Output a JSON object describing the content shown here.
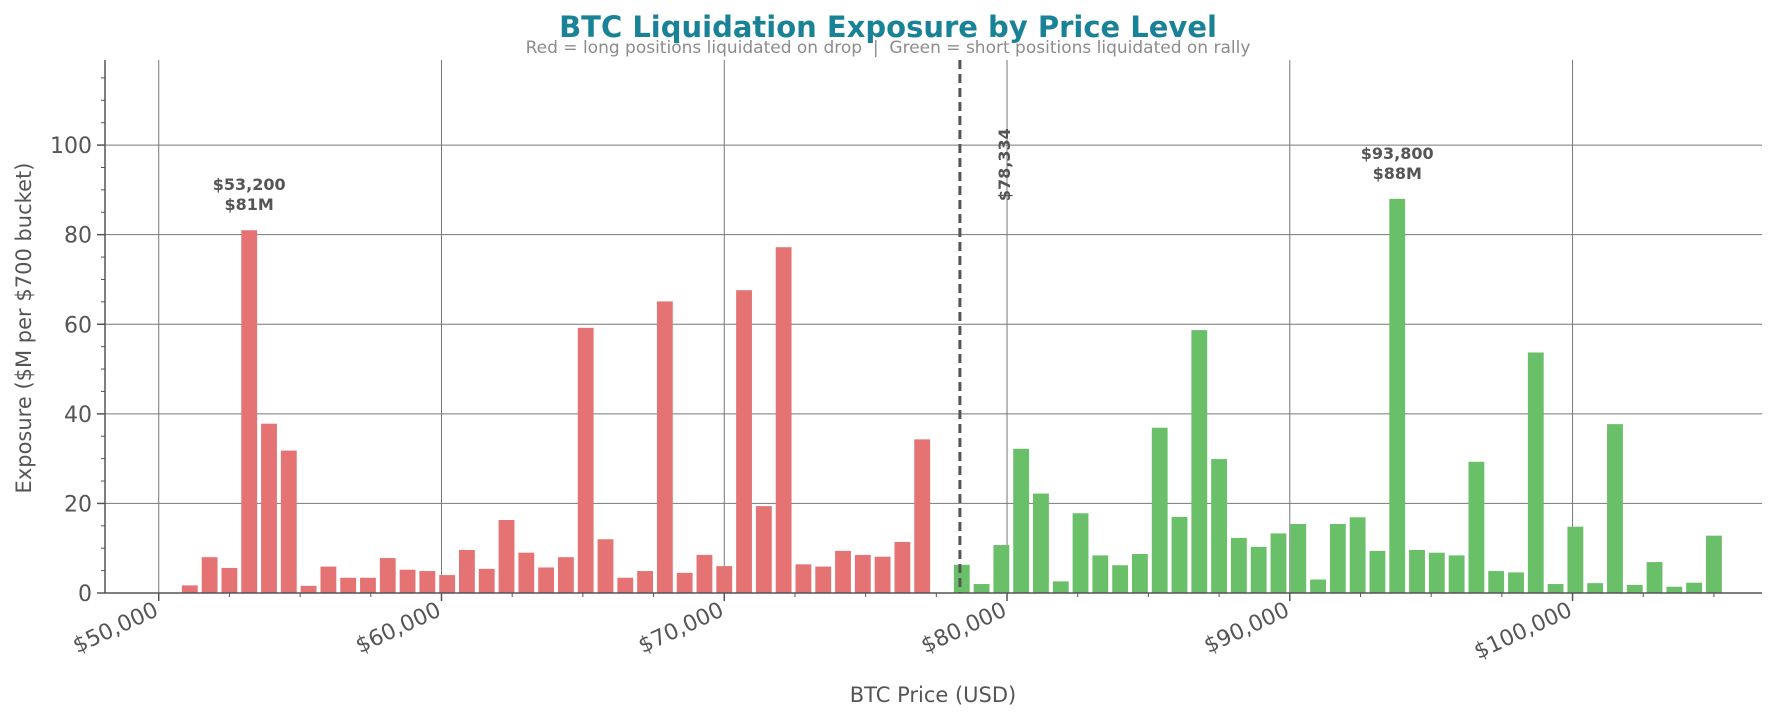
{
  "chart_data": {
    "type": "bar",
    "title": "BTC Liquidation Exposure by Price Level",
    "subtitle": "Red = long positions liquidated on drop  |  Green = short positions liquidated on rally",
    "xlabel": "BTC Price (USD)",
    "ylabel": "Exposure ($M per $700 bucket)",
    "xlim": [
      48100,
      106700
    ],
    "ylim": [
      0,
      119
    ],
    "x_ticks": [
      50000,
      60000,
      70000,
      80000,
      90000,
      100000
    ],
    "x_tick_labels": [
      "$50,000",
      "$60,000",
      "$70,000",
      "$80,000",
      "$90,000",
      "$100,000"
    ],
    "y_ticks": [
      0,
      20,
      40,
      60,
      80,
      100
    ],
    "y_tick_labels": [
      "0",
      "20",
      "40",
      "60",
      "80",
      "100"
    ],
    "grid": true,
    "bucket_width": 700,
    "current_price": 78334,
    "current_price_label": "$78,334",
    "colors": {
      "long": "#e57373",
      "short": "#6abf69",
      "title": "#1a8296",
      "annotation": "#555555"
    },
    "series": [
      {
        "side": "long",
        "color": "#e57373",
        "x": [
          51100,
          51800,
          52500,
          53200,
          53900,
          54600,
          55300,
          56000,
          56700,
          57400,
          58100,
          58800,
          59500,
          60200,
          60900,
          61600,
          62300,
          63000,
          63700,
          64400,
          65100,
          65800,
          66500,
          67200,
          67900,
          68600,
          69300,
          70000,
          70700,
          71400,
          72100,
          72800,
          73500,
          74200,
          74900,
          75600,
          76300,
          77000
        ],
        "values": [
          1.7,
          8.0,
          5.6,
          81.0,
          37.8,
          31.8,
          1.6,
          5.9,
          3.4,
          3.4,
          7.8,
          5.2,
          4.9,
          4.0,
          9.6,
          5.4,
          16.3,
          9.0,
          5.7,
          8.0,
          59.2,
          12.0,
          3.4,
          4.9,
          65.1,
          4.5,
          8.5,
          6.0,
          67.6,
          19.4,
          77.2,
          6.4,
          5.9,
          9.4,
          8.5,
          8.1,
          11.4,
          34.3
        ]
      },
      {
        "side": "short",
        "color": "#6abf69",
        "x": [
          78400,
          79100,
          79800,
          80500,
          81200,
          81900,
          82600,
          83300,
          84000,
          84700,
          85400,
          86100,
          86800,
          87500,
          88200,
          88900,
          89600,
          90300,
          91000,
          91700,
          92400,
          93100,
          93800,
          94500,
          95200,
          95900,
          96600,
          97300,
          98000,
          98700,
          99400,
          100100,
          100800,
          101500,
          102200,
          102900,
          103600,
          104300,
          105000
        ],
        "values": [
          6.3,
          2.0,
          10.7,
          32.2,
          22.2,
          2.6,
          17.8,
          8.4,
          6.2,
          8.7,
          36.9,
          17.0,
          58.7,
          29.9,
          12.3,
          10.3,
          13.3,
          15.4,
          3.0,
          15.4,
          16.9,
          9.4,
          88.0,
          9.6,
          9.0,
          8.4,
          29.3,
          4.9,
          4.6,
          53.7,
          2.0,
          14.8,
          2.2,
          37.7,
          1.8,
          6.9,
          1.4,
          2.3,
          12.8
        ]
      }
    ],
    "annotations": [
      {
        "x": 53200,
        "line1": "$53,200",
        "line2": "$81M",
        "y": 81.0
      },
      {
        "x": 93800,
        "line1": "$93,800",
        "line2": "$88M",
        "y": 88.0
      }
    ]
  }
}
